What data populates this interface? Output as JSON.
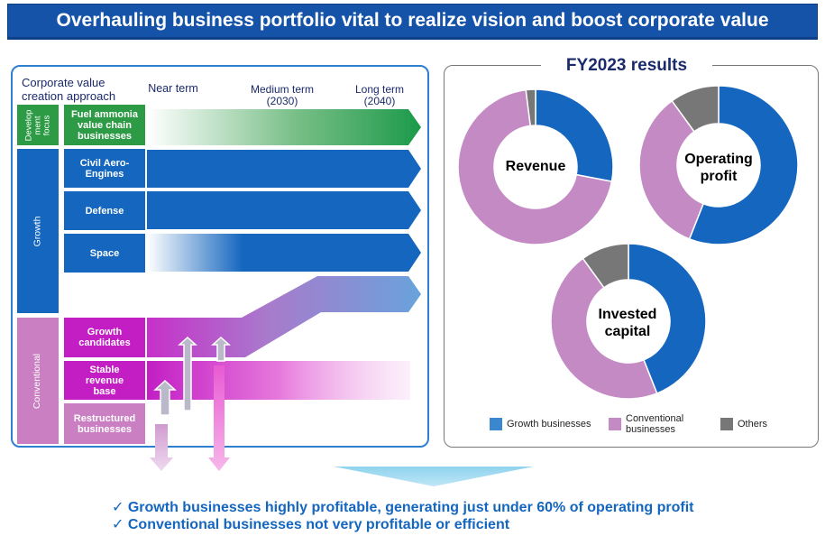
{
  "banner_title": "Overhauling business portfolio vital to realize vision and boost corporate value",
  "left_panel": {
    "approach_label": "Corporate value creation approach",
    "terms": {
      "near": "Near term",
      "medium": "Medium term\n(2030)",
      "long": "Long term\n(2040)"
    },
    "categories": {
      "development": "Develop\nment\nfocus",
      "growth": "Growth",
      "conventional": "Conventional"
    },
    "businesses": {
      "fuel_ammonia": "Fuel ammonia value chain businesses",
      "civil_aero": "Civil Aero-Engines",
      "defense": "Defense",
      "space": "Space",
      "growth_candidates": "Growth candidates",
      "stable_revenue": "Stable revenue base",
      "restructured": "Restructured businesses"
    }
  },
  "right_panel": {
    "title": "FY2023 results",
    "legend": {
      "growth": "Growth businesses",
      "conventional": "Conventional businesses",
      "others": "Others"
    }
  },
  "colors": {
    "growth": "#1466bf",
    "conventional": "#c38ac4",
    "others": "#777777",
    "development": "#2d9b45"
  },
  "chart_data": {
    "type": "pie",
    "series_names": [
      "Growth businesses",
      "Conventional businesses",
      "Others"
    ],
    "charts": [
      {
        "label": "Revenue",
        "values": [
          28,
          70,
          2
        ]
      },
      {
        "label": "Operating\nprofit",
        "values": [
          56,
          34,
          10
        ]
      },
      {
        "label": "Invested\ncapital",
        "values": [
          44,
          46,
          10
        ]
      }
    ]
  },
  "conclusions": [
    "Growth businesses highly profitable, generating just under 60% of operating profit",
    "Conventional businesses not very profitable or efficient"
  ],
  "check_glyph": "✓"
}
